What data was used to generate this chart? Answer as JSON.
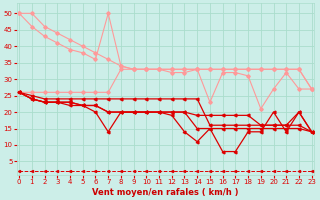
{
  "bg_color": "#cceee8",
  "grid_color": "#aaddcc",
  "line_color_dark": "#dd0000",
  "line_color_light": "#ff9999",
  "xlabel": "Vent moyen/en rafales ( km/h )",
  "xlabel_color": "#cc0000",
  "xticks": [
    0,
    1,
    2,
    3,
    4,
    5,
    6,
    7,
    8,
    9,
    10,
    11,
    12,
    13,
    14,
    15,
    16,
    17,
    18,
    19,
    20,
    21,
    22,
    23
  ],
  "yticks": [
    5,
    10,
    15,
    20,
    25,
    30,
    35,
    40,
    45,
    50
  ],
  "ylim": [
    1,
    53
  ],
  "xlim": [
    -0.2,
    23.2
  ],
  "series_light": [
    [
      50,
      50,
      46,
      44,
      42,
      40,
      38,
      36,
      34,
      33,
      33,
      33,
      33,
      33,
      33,
      33,
      33,
      33,
      33,
      33,
      33,
      33,
      33,
      27
    ],
    [
      50,
      46,
      43,
      41,
      39,
      38,
      36,
      50,
      34,
      33,
      33,
      33,
      33,
      33,
      33,
      33,
      33,
      33,
      33,
      33,
      33,
      33,
      33,
      27
    ],
    [
      26,
      26,
      26,
      26,
      26,
      26,
      26,
      26,
      33,
      33,
      33,
      33,
      32,
      32,
      33,
      23,
      32,
      32,
      31,
      21,
      27,
      32,
      27,
      27
    ]
  ],
  "series_dark": [
    [
      26,
      24,
      23,
      23,
      23,
      22,
      20,
      14,
      20,
      20,
      20,
      20,
      20,
      20,
      19,
      19,
      19,
      19,
      19,
      16,
      16,
      16,
      20,
      14
    ],
    [
      26,
      24,
      23,
      23,
      23,
      22,
      22,
      20,
      20,
      20,
      20,
      20,
      19,
      14,
      11,
      15,
      8,
      8,
      14,
      14,
      20,
      14,
      20,
      14
    ],
    [
      26,
      24,
      23,
      23,
      22,
      22,
      22,
      20,
      20,
      20,
      20,
      20,
      20,
      20,
      15,
      15,
      15,
      15,
      15,
      15,
      15,
      15,
      15,
      14
    ],
    [
      26,
      25,
      24,
      24,
      24,
      24,
      24,
      24,
      24,
      24,
      24,
      24,
      24,
      24,
      24,
      16,
      16,
      16,
      16,
      16,
      16,
      16,
      16,
      14
    ],
    [
      2,
      2,
      2,
      2,
      2,
      2,
      2,
      2,
      2,
      2,
      2,
      2,
      2,
      2,
      2,
      2,
      2,
      2,
      2,
      2,
      2,
      2,
      2,
      2
    ]
  ]
}
